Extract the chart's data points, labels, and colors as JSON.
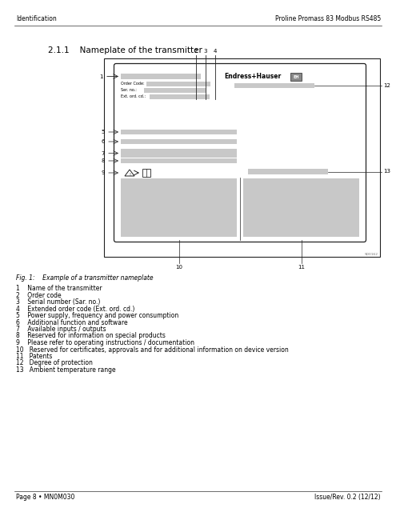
{
  "header_left": "Identification",
  "header_right": "Proline Promass 83 Modbus RS485",
  "section_title": "2.1.1    Nameplate of the transmitter",
  "fig_caption": "Fig. 1:    Example of a transmitter nameplate",
  "legend_items": [
    "1    Name of the transmitter",
    "2    Order code",
    "3    Serial number (Sar. no.)",
    "4    Extended order code (Ext. ord. cd.)",
    "5    Power supply, frequency and power consumption",
    "6    Additional function and software",
    "7    Available inputs / outputs",
    "8    Reserved for information on special products",
    "9    Please refer to operating instructions / documentation",
    "10   Reserved for certificates, approvals and for additional information on device version",
    "11   Patents",
    "12   Degree of protection",
    "13   Ambient temperature range"
  ],
  "footer_left": "Page 8 • MN0M030",
  "footer_right": "Issue/Rev. 0.2 (12/12)",
  "bg_color": "#ffffff",
  "gray_light": "#c8c8c8",
  "gray_medium": "#888888",
  "border_color": "#222222",
  "text_color": "#000000",
  "header_line_color": "#333333",
  "ref_num": "SD0162"
}
